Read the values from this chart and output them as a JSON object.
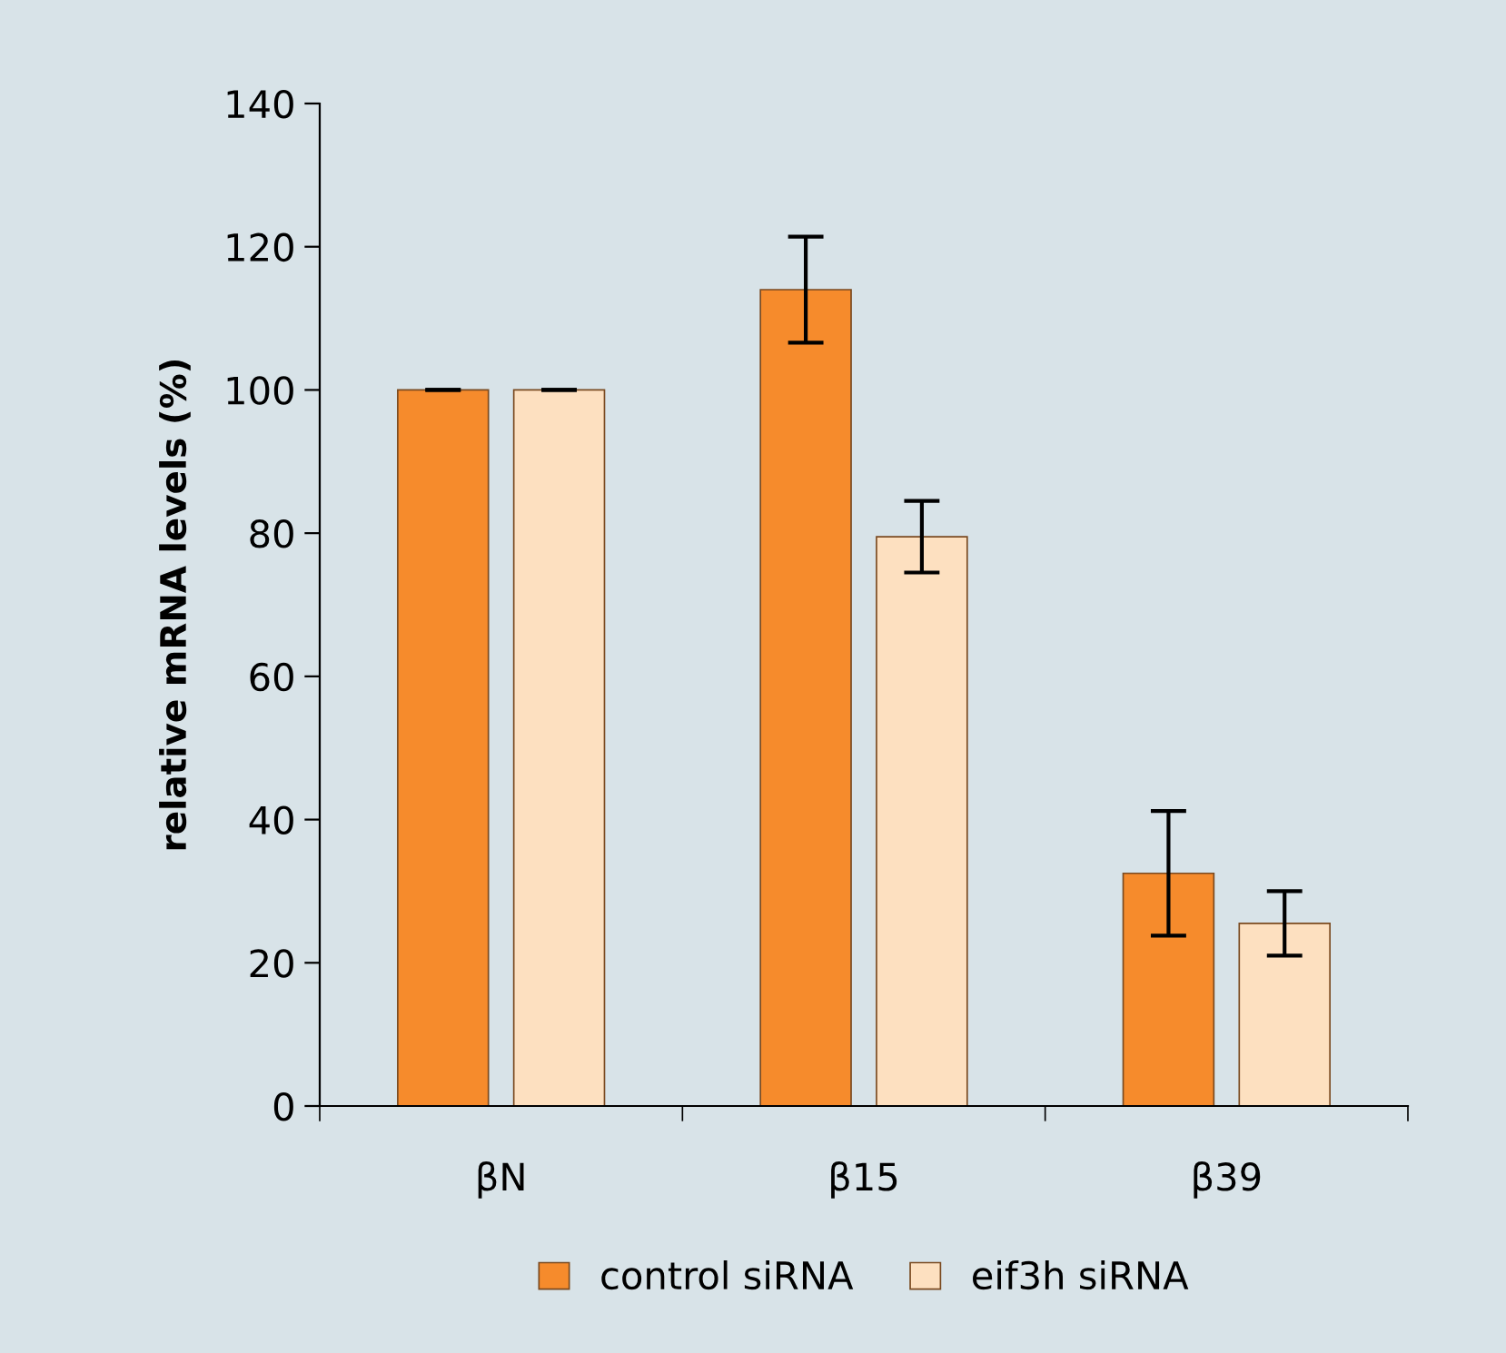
{
  "chart_data": {
    "type": "bar",
    "ylabel": "relative mRNA levels (%)",
    "categories": [
      "βN",
      "β15",
      "β39"
    ],
    "series": [
      {
        "name": "control siRNA",
        "color": "#f68b2c",
        "values": [
          100,
          114,
          32.5
        ],
        "errors": [
          0,
          7.4,
          8.7
        ]
      },
      {
        "name": "eif3h siRNA",
        "color": "#fde0c0",
        "values": [
          100,
          79.5,
          25.5
        ],
        "errors": [
          0,
          5,
          4.5
        ]
      }
    ],
    "ylim": [
      0,
      140
    ],
    "yticks": [
      0,
      20,
      40,
      60,
      80,
      100,
      120,
      140
    ],
    "grid": false,
    "legend": "bottom"
  }
}
